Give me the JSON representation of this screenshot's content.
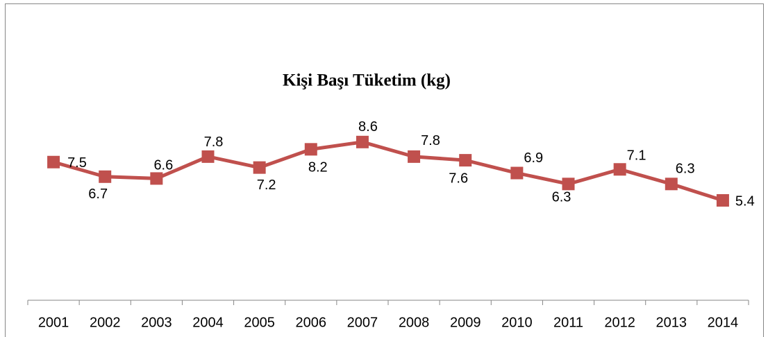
{
  "chart_data": {
    "type": "line",
    "title": "Kişi Başı Tüketim (kg)",
    "categories": [
      "2001",
      "2002",
      "2003",
      "2004",
      "2005",
      "2006",
      "2007",
      "2008",
      "2009",
      "2010",
      "2011",
      "2012",
      "2013",
      "2014"
    ],
    "series": [
      {
        "name": "Kişi Başı Tüketim (kg)",
        "color": "#c0504d",
        "values": [
          7.5,
          6.7,
          6.6,
          7.8,
          7.2,
          8.2,
          8.6,
          7.8,
          7.6,
          6.9,
          6.3,
          7.1,
          6.3,
          5.4
        ]
      }
    ],
    "ylim": [
      0,
      10
    ],
    "grid": false
  }
}
